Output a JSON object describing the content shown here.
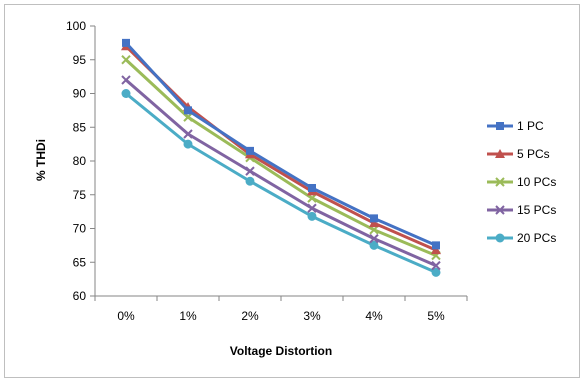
{
  "chart_data": {
    "type": "line",
    "categories": [
      "0%",
      "1%",
      "2%",
      "3%",
      "4%",
      "5%"
    ],
    "xlabel": "Voltage Distortion",
    "ylabel": "% THDi",
    "ylim": [
      60,
      100
    ],
    "yticks": [
      60,
      65,
      70,
      75,
      80,
      85,
      90,
      95,
      100
    ],
    "grid": false,
    "legend_position": "right",
    "series": [
      {
        "name": "1 PC",
        "color": "#4472c4",
        "marker": "square",
        "values": [
          97.5,
          87.5,
          81.5,
          76,
          71.5,
          67.5
        ]
      },
      {
        "name": "5 PCs",
        "color": "#c0504d",
        "marker": "triangle",
        "values": [
          97,
          88,
          81,
          75.5,
          70.8,
          66.8
        ]
      },
      {
        "name": "10 PCs",
        "color": "#9bbb59",
        "marker": "x",
        "values": [
          95,
          86.5,
          80.5,
          74.5,
          69.8,
          66
        ]
      },
      {
        "name": "15 PCs",
        "color": "#8064a2",
        "marker": "x",
        "values": [
          92,
          84,
          78.5,
          73,
          68.5,
          64.5
        ]
      },
      {
        "name": "20 PCs",
        "color": "#4bacc6",
        "marker": "circle",
        "values": [
          90,
          82.5,
          77,
          71.8,
          67.5,
          63.5
        ]
      }
    ]
  }
}
